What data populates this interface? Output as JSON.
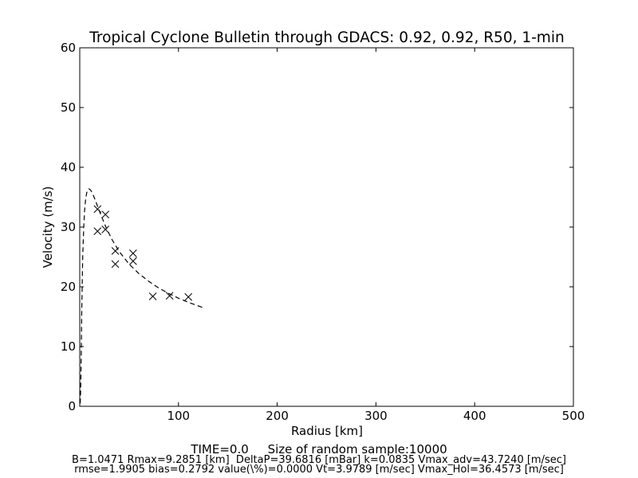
{
  "chart_data": {
    "type": "scatter",
    "title": "Tropical Cyclone Bulletin through GDACS: 0.92, 0.92, R50, 1-min",
    "xlabel": "Radius [km]",
    "ylabel": "Velocity (m/s)",
    "xlim": [
      0,
      500
    ],
    "ylim": [
      0,
      60
    ],
    "xticks": [
      100,
      200,
      300,
      400,
      500
    ],
    "yticks": [
      0,
      10,
      20,
      30,
      40,
      50,
      60
    ],
    "grid": false,
    "legend": "none",
    "series": [
      {
        "kind": "markers",
        "marker": "x",
        "color": "#000000",
        "points": [
          [
            18,
            33.0
          ],
          [
            18,
            29.3
          ],
          [
            26,
            32.1
          ],
          [
            26,
            29.6
          ],
          [
            36,
            26.0
          ],
          [
            36,
            23.8
          ],
          [
            54,
            25.6
          ],
          [
            54,
            24.3
          ],
          [
            74,
            18.4
          ],
          [
            91,
            18.5
          ],
          [
            110,
            18.3
          ]
        ]
      },
      {
        "kind": "fit",
        "style": "dashed",
        "color": "#000000",
        "points": [
          [
            0.5,
            0.5
          ],
          [
            1,
            3
          ],
          [
            1.5,
            9
          ],
          [
            2,
            16
          ],
          [
            3,
            25
          ],
          [
            4,
            30
          ],
          [
            5,
            33
          ],
          [
            6,
            34.7
          ],
          [
            7,
            35.7
          ],
          [
            8,
            36.2
          ],
          [
            9.3,
            36.4
          ],
          [
            11,
            36.2
          ],
          [
            13,
            35.6
          ],
          [
            15,
            34.8
          ],
          [
            18,
            33.5
          ],
          [
            22,
            31.8
          ],
          [
            27,
            29.8
          ],
          [
            33,
            27.8
          ],
          [
            40,
            25.9
          ],
          [
            50,
            23.8
          ],
          [
            60,
            22.2
          ],
          [
            70,
            20.9
          ],
          [
            80,
            19.8
          ],
          [
            90,
            18.9
          ],
          [
            100,
            18.1
          ],
          [
            110,
            17.4
          ],
          [
            120,
            16.8
          ],
          [
            127,
            16.4
          ]
        ]
      }
    ]
  },
  "footer": {
    "line1": "TIME=0.0     Size of random sample:10000",
    "line2": "B=1.0471 Rmax=9.2851 [km]  DeltaP=39.6816 [mBar] k=0.0835 Vmax_adv=43.7240 [m/sec]",
    "line3": "rmse=1.9905 bias=0.2792 value(\\%)=0.0000 Vt=3.9789 [m/sec] Vmax_Hol=36.4573 [m/sec]"
  }
}
